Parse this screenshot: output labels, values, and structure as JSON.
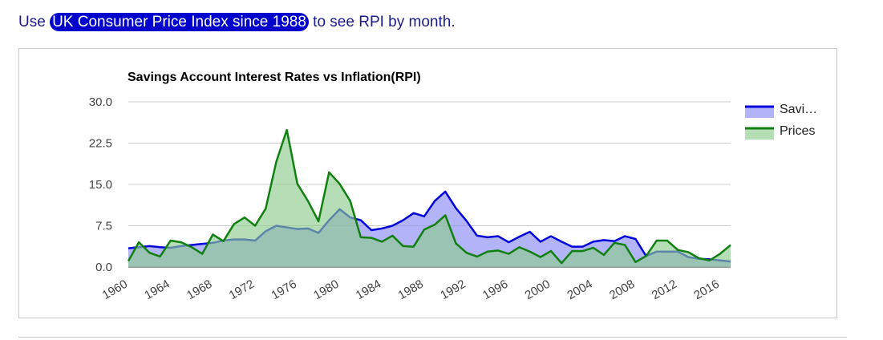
{
  "intro": {
    "prefix": "Use ",
    "link_label": "UK Consumer Price Index since 1988",
    "suffix": " to see RPI by month."
  },
  "colors": {
    "savings_line": "#0000dd",
    "savings_fill": "#8a8af5",
    "prices_line": "#108010",
    "prices_fill": "#8fcc8f",
    "link_bg": "#0000cc",
    "intro_text": "#1a1a8c"
  },
  "chart_data": {
    "type": "area",
    "title": "Savings Account Interest Rates vs Inflation(RPI)",
    "ylim": [
      0,
      30
    ],
    "yticks": [
      "30.0",
      "22.5",
      "15.0",
      "7.5",
      "0.0"
    ],
    "yticks_values": [
      30,
      22.5,
      15,
      7.5,
      0
    ],
    "xlim": [
      1960,
      2017
    ],
    "xticks": [
      "1960",
      "1964",
      "1968",
      "1972",
      "1976",
      "1980",
      "1984",
      "1988",
      "1992",
      "1996",
      "2000",
      "2004",
      "2008",
      "2012",
      "2016"
    ],
    "xticks_values": [
      1960,
      1964,
      1968,
      1972,
      1976,
      1980,
      1984,
      1988,
      1992,
      1996,
      2000,
      2004,
      2008,
      2012,
      2016
    ],
    "grid": true,
    "legend_position": "right",
    "x": [
      1960,
      1961,
      1962,
      1963,
      1964,
      1965,
      1966,
      1967,
      1968,
      1969,
      1970,
      1971,
      1972,
      1973,
      1974,
      1975,
      1976,
      1977,
      1978,
      1979,
      1980,
      1981,
      1982,
      1983,
      1984,
      1985,
      1986,
      1987,
      1988,
      1989,
      1990,
      1991,
      1992,
      1993,
      1994,
      1995,
      1996,
      1997,
      1998,
      1999,
      2000,
      2001,
      2002,
      2003,
      2004,
      2005,
      2006,
      2007,
      2008,
      2009,
      2010,
      2011,
      2012,
      2013,
      2014,
      2015,
      2016,
      2017
    ],
    "series": [
      {
        "name": "Savi…",
        "values": [
          3.4,
          3.6,
          3.8,
          3.6,
          3.5,
          3.8,
          4.0,
          4.2,
          4.4,
          4.8,
          5.0,
          5.0,
          4.8,
          6.5,
          7.5,
          7.2,
          6.9,
          7.0,
          6.2,
          8.5,
          10.5,
          9.0,
          8.5,
          6.7,
          7.0,
          7.5,
          8.5,
          9.8,
          9.2,
          12.0,
          13.7,
          10.7,
          8.4,
          5.7,
          5.4,
          5.6,
          4.5,
          5.5,
          6.4,
          4.6,
          5.6,
          4.6,
          3.7,
          3.7,
          4.6,
          4.9,
          4.7,
          5.6,
          5.1,
          2.0,
          2.8,
          2.8,
          2.8,
          1.8,
          1.5,
          1.4,
          1.2,
          1.0
        ]
      },
      {
        "name": "Prices",
        "values": [
          1.1,
          4.5,
          2.6,
          1.9,
          4.8,
          4.5,
          3.6,
          2.4,
          5.9,
          4.7,
          7.8,
          9.0,
          7.5,
          10.6,
          19.1,
          24.9,
          15.1,
          12.0,
          8.3,
          17.2,
          15.1,
          12.0,
          5.4,
          5.3,
          4.6,
          5.7,
          3.8,
          3.7,
          6.8,
          7.7,
          9.4,
          4.3,
          2.6,
          1.9,
          2.8,
          3.0,
          2.4,
          3.6,
          2.8,
          1.8,
          2.9,
          0.7,
          2.9,
          2.9,
          3.5,
          2.2,
          4.4,
          4.0,
          0.9,
          2.0,
          4.8,
          4.8,
          3.1,
          2.7,
          1.6,
          1.2,
          2.4,
          4.0
        ]
      }
    ]
  }
}
